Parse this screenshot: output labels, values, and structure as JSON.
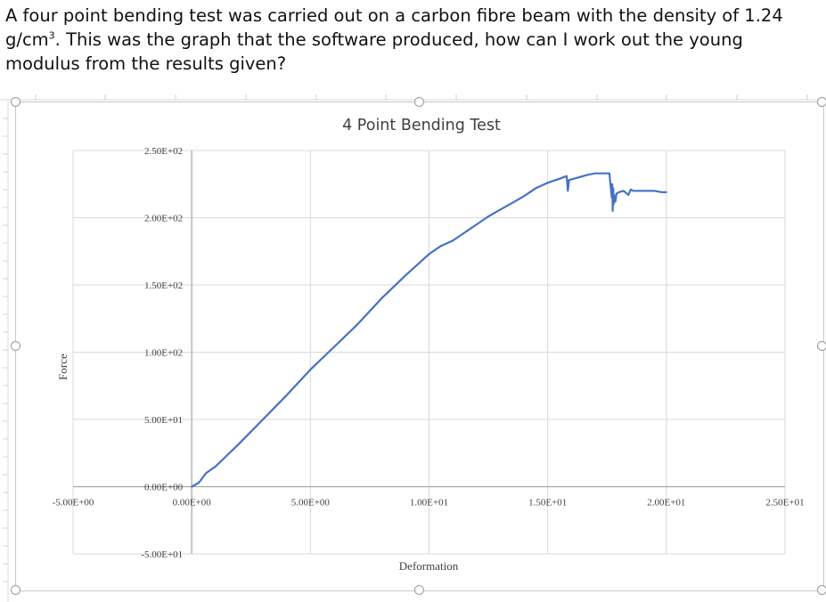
{
  "question": {
    "line1_pre": "A four point bending test was carried out on a carbon fibre beam with the density of 1.24 g/cm",
    "superscript": "3",
    "line1_post": ". This was the graph that the software produced, how can I work out the young modulus from the results given?"
  },
  "chart_data": {
    "type": "line",
    "title": "4 Point Bending Test",
    "xlabel": "Deformation",
    "ylabel": "Force",
    "xlim": [
      -5,
      25
    ],
    "ylim": [
      -50,
      250
    ],
    "x_ticks": [
      -5,
      0,
      5,
      10,
      15,
      20,
      25
    ],
    "y_ticks": [
      -50,
      0,
      50,
      100,
      150,
      200,
      250
    ],
    "x_tick_labels": [
      "-5.00E+00",
      "0.00E+00",
      "5.00E+00",
      "1.00E+01",
      "1.50E+01",
      "2.00E+01",
      "2.50E+01"
    ],
    "y_tick_labels": [
      "-5.00E+01",
      "0.00E+00",
      "5.00E+01",
      "1.00E+02",
      "1.50E+02",
      "2.00E+02",
      "2.50E+02"
    ],
    "grid": true,
    "legend": "none",
    "series": [
      {
        "color": "#4472c4",
        "x": [
          0,
          0.3,
          0.6,
          1.0,
          2.0,
          3.0,
          4.0,
          5.0,
          6.0,
          7.0,
          8.0,
          9.0,
          9.5,
          10.0,
          10.5,
          11.0,
          11.5,
          12.0,
          12.5,
          13.0,
          13.5,
          14.0,
          14.5,
          15.0,
          15.5,
          15.8,
          15.85,
          15.9,
          16.3,
          16.7,
          17.0,
          17.4,
          17.6,
          17.7,
          17.72,
          17.74,
          17.76,
          17.78,
          17.8,
          17.85,
          17.9,
          18.0,
          18.2,
          18.4,
          18.5,
          18.6,
          18.8,
          19.0,
          19.2,
          19.5,
          19.8,
          20.0
        ],
        "y": [
          0,
          3,
          10,
          15,
          32,
          50,
          68,
          87,
          104,
          121,
          140,
          157,
          165,
          173,
          179,
          183,
          189,
          195,
          201,
          206,
          211,
          216,
          222,
          226,
          229,
          231,
          220,
          228,
          230,
          232,
          233,
          233,
          233,
          215,
          225,
          205,
          222,
          210,
          217,
          212,
          218,
          219,
          220,
          217,
          221,
          220,
          220,
          220,
          220,
          220,
          219,
          219
        ]
      }
    ]
  }
}
